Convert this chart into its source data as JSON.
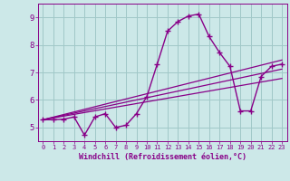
{
  "xlabel": "Windchill (Refroidissement éolien,°C)",
  "bg_color": "#cce8e8",
  "grid_color": "#a0c8c8",
  "line_color": "#880088",
  "xlim": [
    -0.5,
    23.5
  ],
  "ylim": [
    4.5,
    9.5
  ],
  "xticks": [
    0,
    1,
    2,
    3,
    4,
    5,
    6,
    7,
    8,
    9,
    10,
    11,
    12,
    13,
    14,
    15,
    16,
    17,
    18,
    19,
    20,
    21,
    22,
    23
  ],
  "yticks": [
    5,
    6,
    7,
    8,
    9
  ],
  "main_x": [
    0,
    1,
    2,
    3,
    4,
    5,
    6,
    7,
    8,
    9,
    10,
    11,
    12,
    13,
    14,
    15,
    16,
    17,
    18,
    19,
    20,
    21,
    22,
    23
  ],
  "main_y": [
    5.28,
    5.28,
    5.3,
    5.38,
    4.72,
    5.38,
    5.5,
    5.0,
    5.08,
    5.5,
    6.12,
    7.3,
    8.5,
    8.85,
    9.05,
    9.12,
    8.3,
    7.72,
    7.22,
    5.6,
    5.6,
    6.85,
    7.22,
    7.3
  ],
  "trend1_x": [
    0,
    23
  ],
  "trend1_y": [
    5.28,
    7.45
  ],
  "trend2_x": [
    0,
    23
  ],
  "trend2_y": [
    5.28,
    6.78
  ],
  "trend3_x": [
    0,
    23
  ],
  "trend3_y": [
    5.28,
    7.12
  ]
}
